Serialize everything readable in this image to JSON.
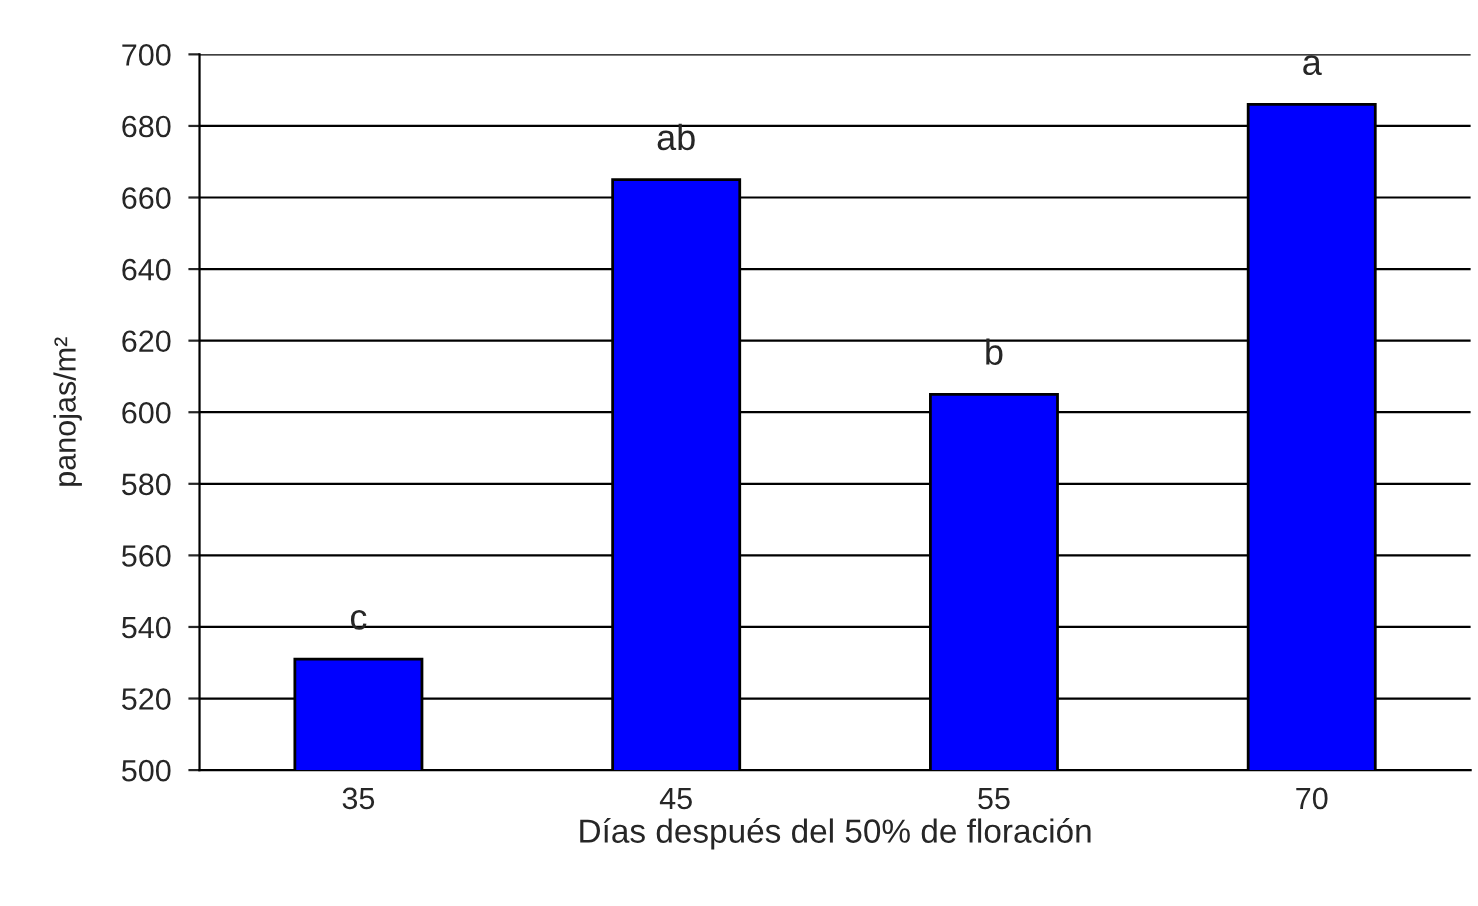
{
  "chart_data": {
    "type": "bar",
    "xlabel": "Días después del 50% de floración",
    "ylabel": "panojas/m²",
    "categories": [
      "35",
      "45",
      "55",
      "70"
    ],
    "values": [
      531,
      665,
      605,
      686
    ],
    "color": "#0000ff",
    "ylim": [
      500,
      700
    ],
    "yticks": [
      500,
      520,
      540,
      560,
      580,
      600,
      620,
      640,
      660,
      680,
      700
    ],
    "grid": "y",
    "annotations": [
      {
        "text": "c",
        "x": "35",
        "y": 531
      },
      {
        "text": "ab",
        "x": "45",
        "y": 665
      },
      {
        "text": "b",
        "x": "55",
        "y": 605
      },
      {
        "text": "a",
        "x": "70",
        "y": 686
      }
    ]
  }
}
